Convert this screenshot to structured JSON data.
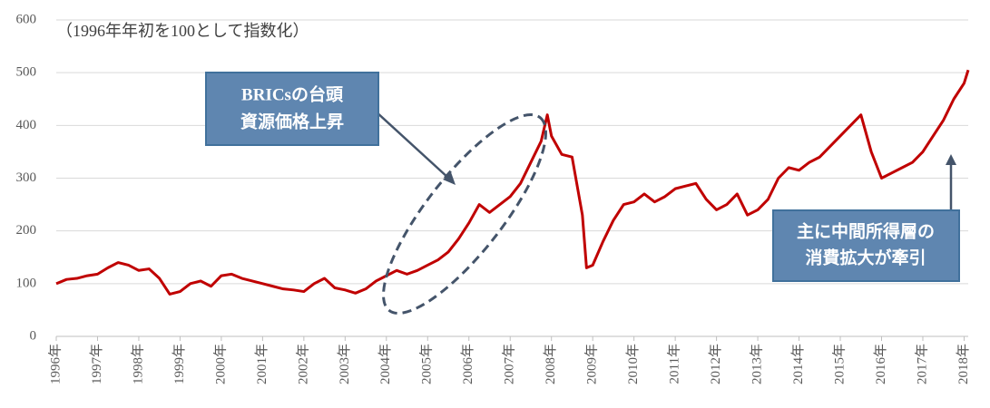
{
  "chart_data": {
    "type": "line",
    "subtitle": "（1996年年初を100として指数化）",
    "annotations": [
      [
        "BRICsの台頭",
        "資源価格上昇"
      ],
      [
        "主に中間所得層の",
        "消費拡大が牽引"
      ]
    ],
    "xlim": [
      1996,
      2018.1
    ],
    "xticks": [
      {
        "value": 1996,
        "label": "1996年"
      },
      {
        "value": 1997,
        "label": "1997年"
      },
      {
        "value": 1998,
        "label": "1998年"
      },
      {
        "value": 1999,
        "label": "1999年"
      },
      {
        "value": 2000,
        "label": "2000年"
      },
      {
        "value": 2001,
        "label": "2001年"
      },
      {
        "value": 2002,
        "label": "2002年"
      },
      {
        "value": 2003,
        "label": "2003年"
      },
      {
        "value": 2004,
        "label": "2004年"
      },
      {
        "value": 2005,
        "label": "2005年"
      },
      {
        "value": 2006,
        "label": "2006年"
      },
      {
        "value": 2007,
        "label": "2007年"
      },
      {
        "value": 2008,
        "label": "2008年"
      },
      {
        "value": 2009,
        "label": "2009年"
      },
      {
        "value": 2010,
        "label": "2010年"
      },
      {
        "value": 2011,
        "label": "2011年"
      },
      {
        "value": 2012,
        "label": "2012年"
      },
      {
        "value": 2013,
        "label": "2013年"
      },
      {
        "value": 2014,
        "label": "2014年"
      },
      {
        "value": 2015,
        "label": "2015年"
      },
      {
        "value": 2016,
        "label": "2016年"
      },
      {
        "value": 2017,
        "label": "2017年"
      },
      {
        "value": 2018,
        "label": "2018年"
      }
    ],
    "ylim": [
      0,
      600
    ],
    "yticks": [
      0,
      100,
      200,
      300,
      400,
      500,
      600
    ],
    "grid": true,
    "x": [
      1996,
      1996.25,
      1996.5,
      1996.75,
      1997,
      1997.25,
      1997.5,
      1997.75,
      1998,
      1998.25,
      1998.5,
      1998.75,
      1999,
      1999.25,
      1999.5,
      1999.75,
      2000,
      2000.25,
      2000.5,
      2000.75,
      2001,
      2001.25,
      2001.5,
      2001.75,
      2002,
      2002.25,
      2002.5,
      2002.75,
      2003,
      2003.25,
      2003.5,
      2003.75,
      2004,
      2004.25,
      2004.5,
      2004.75,
      2005,
      2005.25,
      2005.5,
      2005.75,
      2006,
      2006.25,
      2006.5,
      2006.75,
      2007,
      2007.25,
      2007.5,
      2007.75,
      2007.9,
      2008,
      2008.25,
      2008.5,
      2008.75,
      2008.85,
      2009,
      2009.25,
      2009.5,
      2009.75,
      2010,
      2010.25,
      2010.5,
      2010.75,
      2011,
      2011.25,
      2011.5,
      2011.75,
      2012,
      2012.25,
      2012.5,
      2012.75,
      2013,
      2013.25,
      2013.5,
      2013.75,
      2014,
      2014.25,
      2014.5,
      2014.75,
      2015,
      2015.25,
      2015.5,
      2015.75,
      2016,
      2016.25,
      2016.5,
      2016.75,
      2017,
      2017.25,
      2017.5,
      2017.75,
      2018,
      2018.1
    ],
    "series": [
      {
        "color": "#c00000",
        "values": [
          100,
          108,
          110,
          115,
          118,
          130,
          140,
          135,
          125,
          128,
          110,
          80,
          85,
          100,
          105,
          95,
          115,
          118,
          110,
          105,
          100,
          95,
          90,
          88,
          85,
          100,
          110,
          92,
          88,
          82,
          90,
          105,
          115,
          125,
          118,
          125,
          135,
          145,
          160,
          185,
          215,
          250,
          235,
          250,
          265,
          290,
          330,
          370,
          420,
          380,
          345,
          340,
          230,
          130,
          135,
          180,
          220,
          250,
          255,
          270,
          255,
          265,
          280,
          285,
          290,
          260,
          240,
          250,
          270,
          230,
          240,
          260,
          300,
          320,
          315,
          330,
          340,
          360,
          380,
          400,
          420,
          350,
          300,
          310,
          320,
          330,
          350,
          380,
          410,
          450,
          480,
          505
        ]
      }
    ]
  }
}
